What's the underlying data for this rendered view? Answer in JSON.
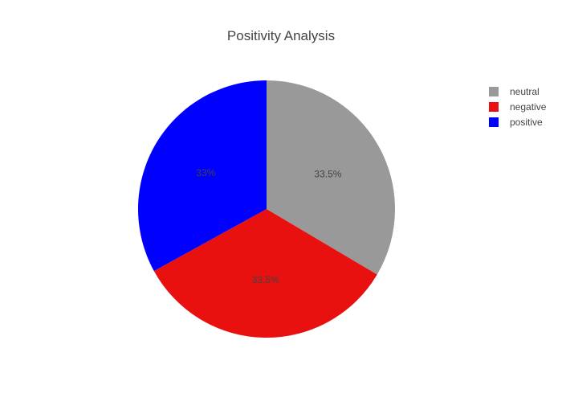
{
  "chart_data": {
    "type": "pie",
    "title": "Positivity Analysis",
    "slices": [
      {
        "label": "neutral",
        "value": 33.5,
        "text": "33.5%",
        "color": "#999999"
      },
      {
        "label": "negative",
        "value": 33.5,
        "text": "33.5%",
        "color": "#e8110f"
      },
      {
        "label": "positive",
        "value": 33.0,
        "text": "33%",
        "color": "#0000ff"
      }
    ],
    "legend": {
      "position": "top-right",
      "entries": [
        "neutral",
        "negative",
        "positive"
      ]
    }
  }
}
